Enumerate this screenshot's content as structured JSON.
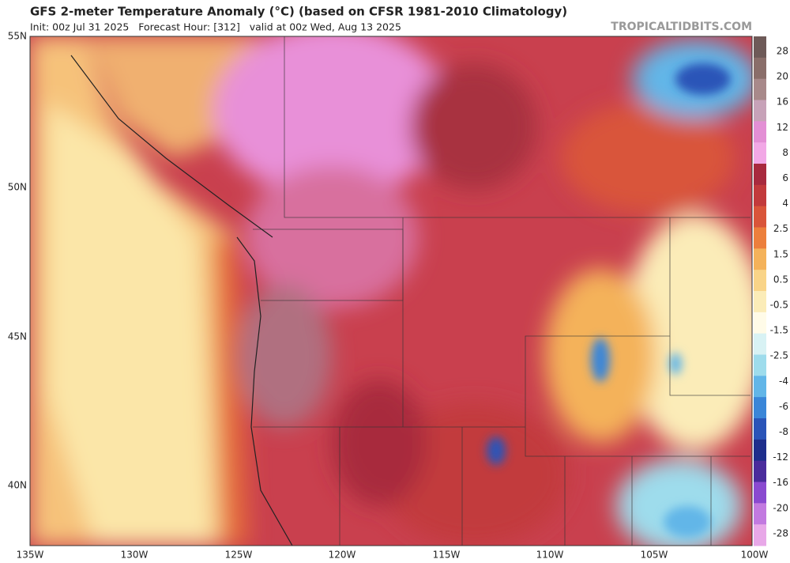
{
  "header": {
    "title": "GFS 2-meter Temperature Anomaly (°C) (based on CFSR 1981-2010 Climatology)",
    "subtitle": "Init: 00z Jul 31 2025   Forecast Hour: [312]   valid at 00z Wed, Aug 13 2025",
    "brand": "TROPICALTIDBITS.COM"
  },
  "axes": {
    "lat_labels": [
      "55N",
      "50N",
      "45N",
      "40N"
    ],
    "lon_labels": [
      "135W",
      "130W",
      "125W",
      "120W",
      "115W",
      "110W",
      "105W",
      "100W"
    ]
  },
  "colorbar": {
    "labels": [
      28,
      20,
      16,
      12,
      8,
      6,
      4,
      2.5,
      1.5,
      0.5,
      -0.5,
      -1.5,
      -2.5,
      -4,
      -6,
      -8,
      -12,
      -16,
      -20,
      -28
    ],
    "colors": [
      "#6e5a58",
      "#8a6e6a",
      "#a8898a",
      "#c7a2b8",
      "#e38fd5",
      "#f2a8e6",
      "#a82a3e",
      "#c23a3c",
      "#d9553a",
      "#ec7f3c",
      "#f4b25a",
      "#f9d488",
      "#fbecb8",
      "#fffbe8",
      "#d8f2f4",
      "#9edcec",
      "#62b6e8",
      "#3a86d8",
      "#2a54b8",
      "#1e2e8c",
      "#4a2c9c",
      "#8a4ad0",
      "#c27ae0",
      "#e8a8e8"
    ]
  }
}
